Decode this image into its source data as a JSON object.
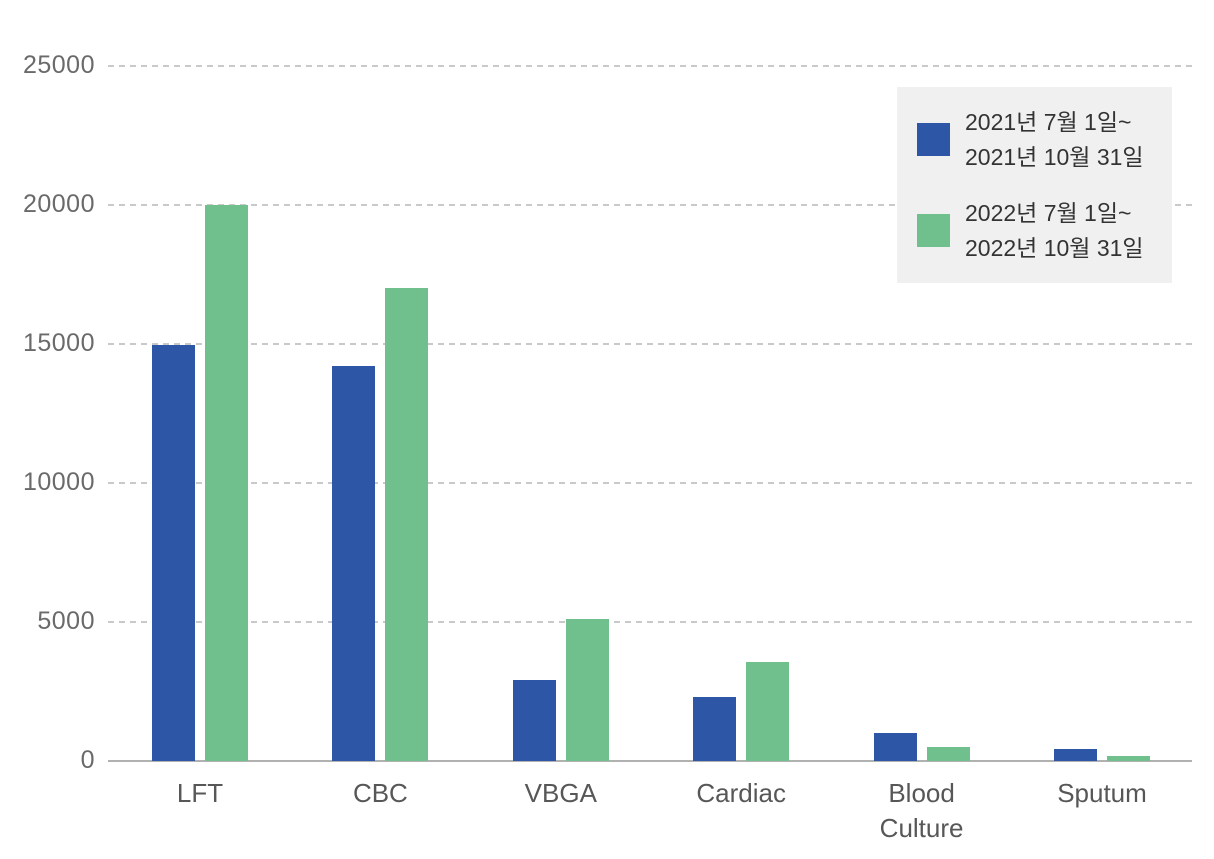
{
  "chart_data": {
    "type": "bar",
    "categories": [
      "LFT",
      "CBC",
      "VBGA",
      "Cardiac",
      "Blood Culture",
      "Sputum"
    ],
    "series": [
      {
        "name": "2021년 7월 1일~ 2021년 10월 31일",
        "color": "#2d56a6",
        "values": [
          14950,
          14200,
          2900,
          2300,
          1000,
          430
        ]
      },
      {
        "name": "2022년 7월 1일~ 2022년 10월 31일",
        "color": "#70c08d",
        "values": [
          20000,
          17000,
          5100,
          3550,
          500,
          180
        ]
      }
    ],
    "title": "",
    "xlabel": "",
    "ylabel": "",
    "ylim": [
      0,
      25000
    ],
    "yticks": [
      0,
      5000,
      10000,
      15000,
      20000,
      25000
    ],
    "grid": "horizontal-dashed",
    "legend_position": "top-right"
  },
  "legend": {
    "background": "#f0f0f0",
    "items": [
      {
        "label_line1": "2021년 7월 1일~",
        "label_line2": "2021년 10월 31일",
        "color": "#2d56a6"
      },
      {
        "label_line1": "2022년 7월 1일~",
        "label_line2": "2022년 10월 31일",
        "color": "#70c08d"
      }
    ]
  },
  "colors": {
    "background": "#ffffff",
    "gridline": "#c9c9c9",
    "axis_line": "#b1b1b1",
    "tick_label": "#6a6a6a",
    "category_label": "#575757",
    "legend_text": "#333333"
  }
}
